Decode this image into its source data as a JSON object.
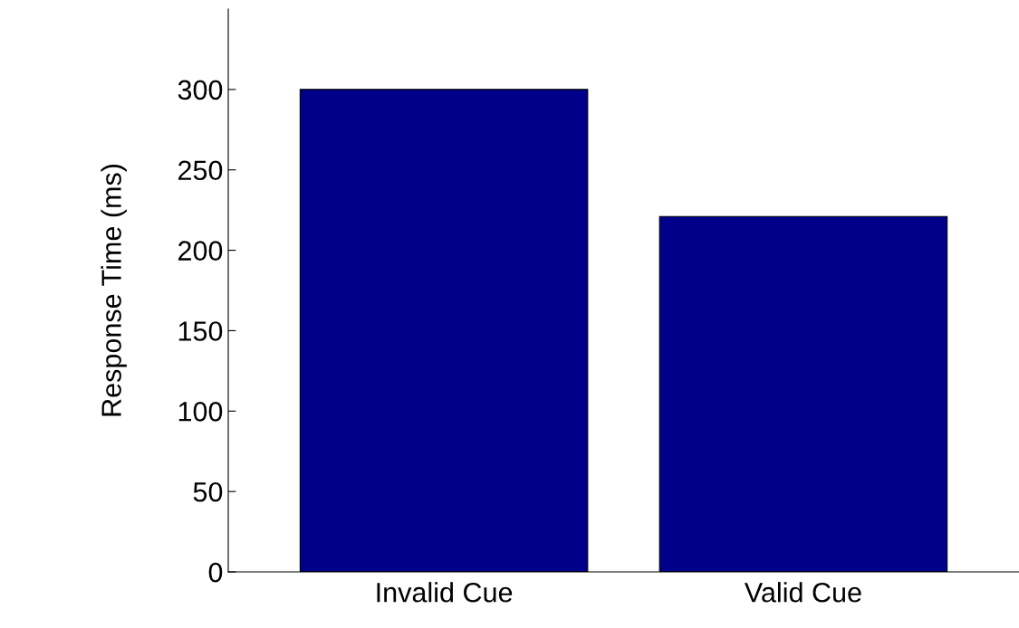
{
  "chart_data": {
    "type": "bar",
    "ylabel": "Response Time (ms)",
    "categories": [
      "Invalid Cue",
      "Valid Cue"
    ],
    "values": [
      300,
      221
    ],
    "color": "#00008b",
    "ylim": [
      0,
      350
    ],
    "yticks": [
      0,
      50,
      100,
      150,
      200,
      250,
      300
    ],
    "grid": false,
    "legend": false
  }
}
